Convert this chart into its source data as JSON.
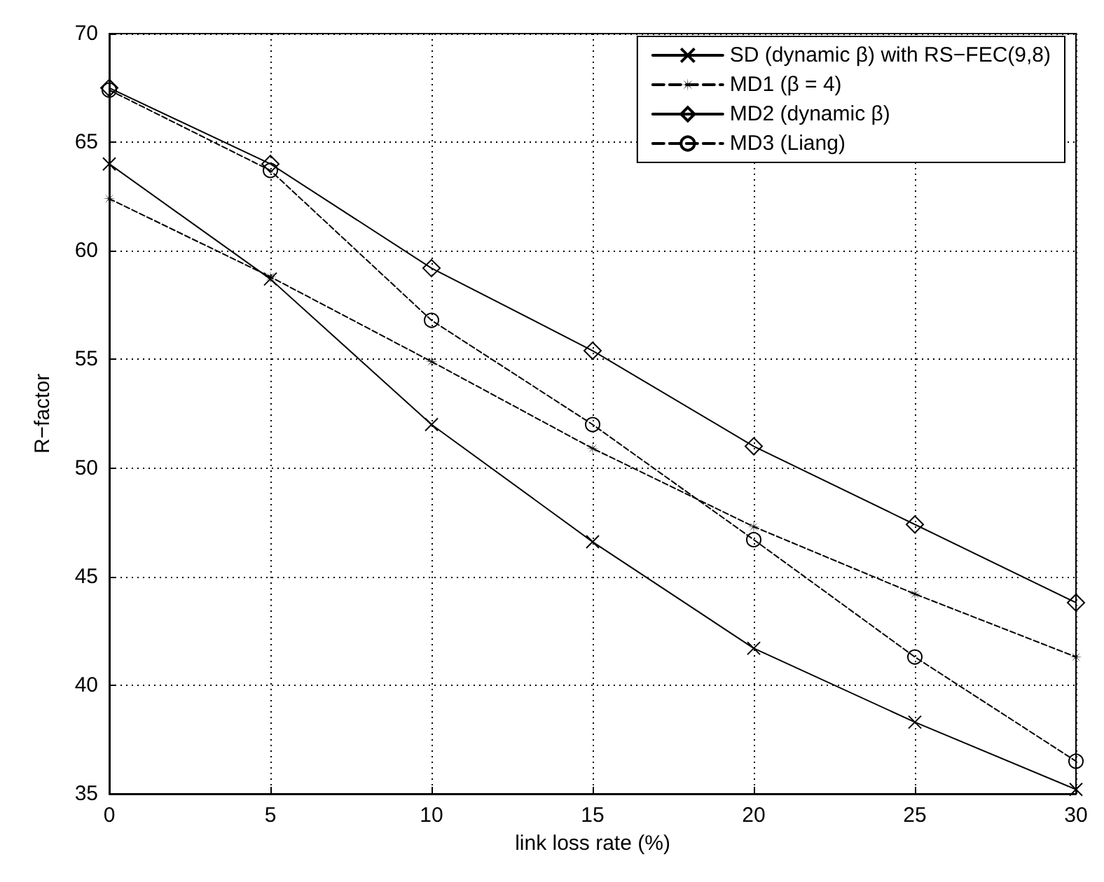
{
  "chart_data": {
    "type": "line",
    "xlabel": "link loss rate (%)",
    "ylabel": "R−factor",
    "x": [
      0,
      5,
      10,
      15,
      20,
      25,
      30
    ],
    "xlim": [
      0,
      30
    ],
    "xticks": [
      0,
      5,
      10,
      15,
      20,
      25,
      30
    ],
    "ylim": [
      35,
      70
    ],
    "yticks": [
      35,
      40,
      45,
      50,
      55,
      60,
      65,
      70
    ],
    "grid": true,
    "legend": "top right",
    "series": [
      {
        "name": "SD (dynamic β) with RS−FEC(9,8)",
        "color": "#000000",
        "marker": "cross",
        "line_style": "solid",
        "values": [
          64,
          58.7,
          52,
          46.6,
          41.7,
          38.3,
          35.2
        ]
      },
      {
        "name": "MD1 (β = 4)",
        "color": "#000000",
        "marker": "star",
        "line_style": "dashed",
        "values": [
          62.4,
          58.8,
          54.9,
          50.9,
          47.3,
          44.2,
          41.3
        ]
      },
      {
        "name": "MD2 (dynamic β)",
        "color": "#000000",
        "marker": "diamond",
        "line_style": "solid",
        "values": [
          67.5,
          64,
          59.2,
          55.4,
          51,
          47.4,
          43.8
        ]
      },
      {
        "name": "MD3 (Liang)",
        "color": "#000000",
        "marker": "circle",
        "line_style": "dashed",
        "values": [
          67.4,
          63.7,
          56.8,
          52,
          46.7,
          41.3,
          36.5
        ]
      }
    ]
  }
}
